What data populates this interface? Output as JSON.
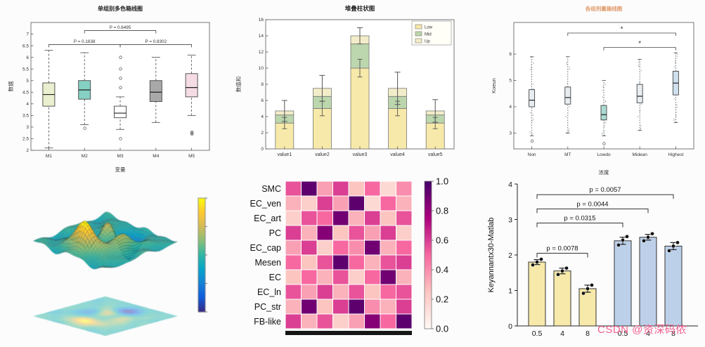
{
  "watermark": {
    "text": "CSDN @资深码侬",
    "color": "#f2608f"
  },
  "chart_data": [
    {
      "type": "box",
      "name": "multicolor-boxplot",
      "title": "单组别多色箱线图",
      "xlabel": "变量",
      "ylabel": "数据",
      "categories": [
        "M1",
        "M2",
        "M3",
        "M4",
        "M5"
      ],
      "ylim": [
        2,
        7.5
      ],
      "yticks": [
        2,
        2.5,
        3,
        3.5,
        4,
        4.5,
        5,
        5.5,
        6,
        6.5,
        7
      ],
      "boxes": [
        {
          "lo": 2.1,
          "q1": 3.9,
          "med": 4.4,
          "q3": 4.9,
          "hi": 6.3,
          "color": "#eaf0cf",
          "outliers": []
        },
        {
          "lo": 3.1,
          "q1": 4.2,
          "med": 4.6,
          "q3": 5.0,
          "hi": 6.2,
          "color": "#86d0c3",
          "outliers": [
            2.95
          ]
        },
        {
          "lo": 2.9,
          "q1": 3.4,
          "med": 3.6,
          "q3": 3.9,
          "hi": 4.3,
          "color": "#ffffff",
          "outliers": [
            6.0,
            5.5,
            5.1,
            4.7,
            2.5
          ]
        },
        {
          "lo": 3.2,
          "q1": 4.1,
          "med": 4.5,
          "q3": 5.0,
          "hi": 6.0,
          "color": "#a8a8a8",
          "outliers": []
        },
        {
          "lo": 3.5,
          "q1": 4.3,
          "med": 4.7,
          "q3": 5.3,
          "hi": 6.1,
          "color": "#f5dce4",
          "outliers": [
            2.78,
            2.7,
            2.74
          ]
        }
      ],
      "brackets": [
        {
          "from": 1,
          "to": 3,
          "y": 6.55,
          "label": "P = 0.1638"
        },
        {
          "from": 2,
          "to": 4,
          "y": 7.15,
          "label": "P = 0.6495"
        },
        {
          "from": 3,
          "to": 5,
          "y": 6.55,
          "label": "P = 0.8302"
        }
      ]
    },
    {
      "type": "bar",
      "name": "stacked-bar",
      "title": "堆叠柱状图",
      "ylabel": "数值和",
      "categories": [
        "value1",
        "value2",
        "value3",
        "value4",
        "value5"
      ],
      "ylim": [
        0,
        16
      ],
      "yticks": [
        0,
        2,
        4,
        6,
        8,
        10,
        12,
        14,
        16
      ],
      "series": [
        {
          "name": "Low",
          "color": "#f7e9a9",
          "values": [
            3.2,
            5.0,
            10.0,
            5.0,
            3.2
          ]
        },
        {
          "name": "Mid",
          "color": "#bcd6ad",
          "values": [
            1.0,
            1.5,
            3.0,
            1.5,
            1.0
          ]
        },
        {
          "name": "Up",
          "color": "#f2edc8",
          "values": [
            0.5,
            1.0,
            1.0,
            1.0,
            0.5
          ]
        }
      ],
      "errors": [
        1.3,
        1.6,
        1.0,
        2.0,
        1.4
      ],
      "mid_errors": [
        0.7,
        0.9,
        1.1,
        0.9,
        0.7
      ],
      "legend": [
        "Low",
        "Mid",
        "Up"
      ]
    },
    {
      "type": "box",
      "name": "dose-boxplot",
      "title": "各组剂量箱线图",
      "title_color": "#e09a6a",
      "xlabel": "浓度",
      "ylabel": "Koeun",
      "categories": [
        "Non",
        "MT",
        "Lowdo",
        "Midean",
        "Highest"
      ],
      "ylim": [
        2.4,
        7.2
      ],
      "yticks": [
        3,
        4,
        5,
        6
      ],
      "boxes": [
        {
          "lo": 2.9,
          "q1": 4.0,
          "med": 4.25,
          "q3": 4.65,
          "hi": 5.9,
          "color": "#e8edf1",
          "outliers": [
            2.7
          ]
        },
        {
          "lo": 3.0,
          "q1": 4.1,
          "med": 4.35,
          "q3": 4.75,
          "hi": 5.9,
          "color": "#e8edf1",
          "outliers": []
        },
        {
          "lo": 2.9,
          "q1": 3.5,
          "med": 3.7,
          "q3": 4.05,
          "hi": 5.0,
          "color": "#aadbd2",
          "outliers": [
            2.6
          ]
        },
        {
          "lo": 3.1,
          "q1": 4.15,
          "med": 4.4,
          "q3": 4.85,
          "hi": 5.8,
          "color": "#e8edf1",
          "outliers": []
        },
        {
          "lo": 3.4,
          "q1": 4.45,
          "med": 4.9,
          "q3": 5.35,
          "hi": 6.05,
          "color": "#cfe0ef",
          "outliers": []
        }
      ],
      "brackets": [
        {
          "from": 2,
          "to": 5,
          "y": 6.8,
          "label": "*"
        },
        {
          "from": 3,
          "to": 5,
          "y": 6.25,
          "label": "*"
        }
      ]
    },
    {
      "type": "surface",
      "name": "surface-3d",
      "colormap": "parula",
      "x_range": [
        -3,
        3
      ],
      "y_range": [
        -3,
        3
      ],
      "grid": 36,
      "z_function": "peaks",
      "colorbar": true
    },
    {
      "type": "heatmap",
      "name": "celltype-heatmap",
      "rows": [
        "SMC",
        "EC_ven",
        "EC_art",
        "PC",
        "EC_cap",
        "Mesen",
        "EC",
        "EC_ln",
        "PC_str",
        "FB-like"
      ],
      "vmin": 0,
      "vmax": 1,
      "colorbar_ticks": [
        "1.0",
        "0.8",
        "0.6",
        "0.4",
        "0.2",
        "0.0"
      ],
      "values": [
        [
          0.55,
          0.95,
          0.35,
          0.6,
          0.25,
          0.5,
          0.15,
          0.4
        ],
        [
          0.3,
          0.2,
          0.6,
          0.35,
          0.95,
          0.15,
          0.5,
          0.3
        ],
        [
          0.2,
          0.55,
          0.5,
          0.9,
          0.3,
          0.6,
          0.25,
          0.55
        ],
        [
          0.6,
          0.3,
          0.85,
          0.25,
          0.55,
          0.35,
          0.6,
          0.2
        ],
        [
          0.35,
          0.6,
          0.2,
          0.5,
          0.4,
          0.9,
          0.3,
          0.5
        ],
        [
          0.5,
          0.25,
          0.55,
          0.95,
          0.5,
          0.3,
          0.55,
          0.6
        ],
        [
          0.25,
          0.5,
          0.3,
          0.55,
          0.2,
          0.5,
          0.9,
          0.3
        ],
        [
          0.55,
          0.35,
          0.6,
          0.3,
          0.55,
          0.25,
          0.5,
          0.55
        ],
        [
          0.3,
          0.9,
          0.25,
          0.6,
          0.95,
          0.4,
          0.3,
          0.6
        ],
        [
          0.6,
          0.3,
          0.55,
          0.2,
          0.35,
          0.85,
          0.5,
          0.95
        ]
      ]
    },
    {
      "type": "bar",
      "name": "grouped-bar-significance",
      "ylabel": "Keyannantx30-Matlab",
      "categories": [
        "0.5",
        "4",
        "8",
        "0.5",
        "4",
        "8"
      ],
      "ylim": [
        0,
        4
      ],
      "yticks": [
        0,
        1,
        2,
        3,
        4
      ],
      "bars": [
        {
          "value": 1.8,
          "err": 0.07,
          "color": "#f7e9a9",
          "dots": [
            1.72,
            1.8,
            1.88
          ]
        },
        {
          "value": 1.55,
          "err": 0.08,
          "color": "#f7e9a9",
          "dots": [
            1.45,
            1.55,
            1.63
          ]
        },
        {
          "value": 1.05,
          "err": 0.1,
          "color": "#f7e9a9",
          "dots": [
            0.92,
            1.05,
            1.15
          ]
        },
        {
          "value": 2.4,
          "err": 0.1,
          "color": "#bdd0ea",
          "dots": [
            2.28,
            2.42,
            2.52
          ]
        },
        {
          "value": 2.5,
          "err": 0.08,
          "color": "#bdd0ea",
          "dots": [
            2.4,
            2.5,
            2.6
          ]
        },
        {
          "value": 2.25,
          "err": 0.1,
          "color": "#bdd0ea",
          "dots": [
            2.12,
            2.25,
            2.35
          ]
        }
      ],
      "brackets": [
        {
          "from": 1,
          "to": 3,
          "y": 2.05,
          "label": "p = 0.0078"
        },
        {
          "from": 1,
          "to": 4,
          "y": 2.9,
          "label": "p = 0.0315"
        },
        {
          "from": 1,
          "to": 5,
          "y": 3.3,
          "label": "p = 0.0044"
        },
        {
          "from": 1,
          "to": 6,
          "y": 3.7,
          "label": "p = 0.0057"
        }
      ]
    }
  ]
}
